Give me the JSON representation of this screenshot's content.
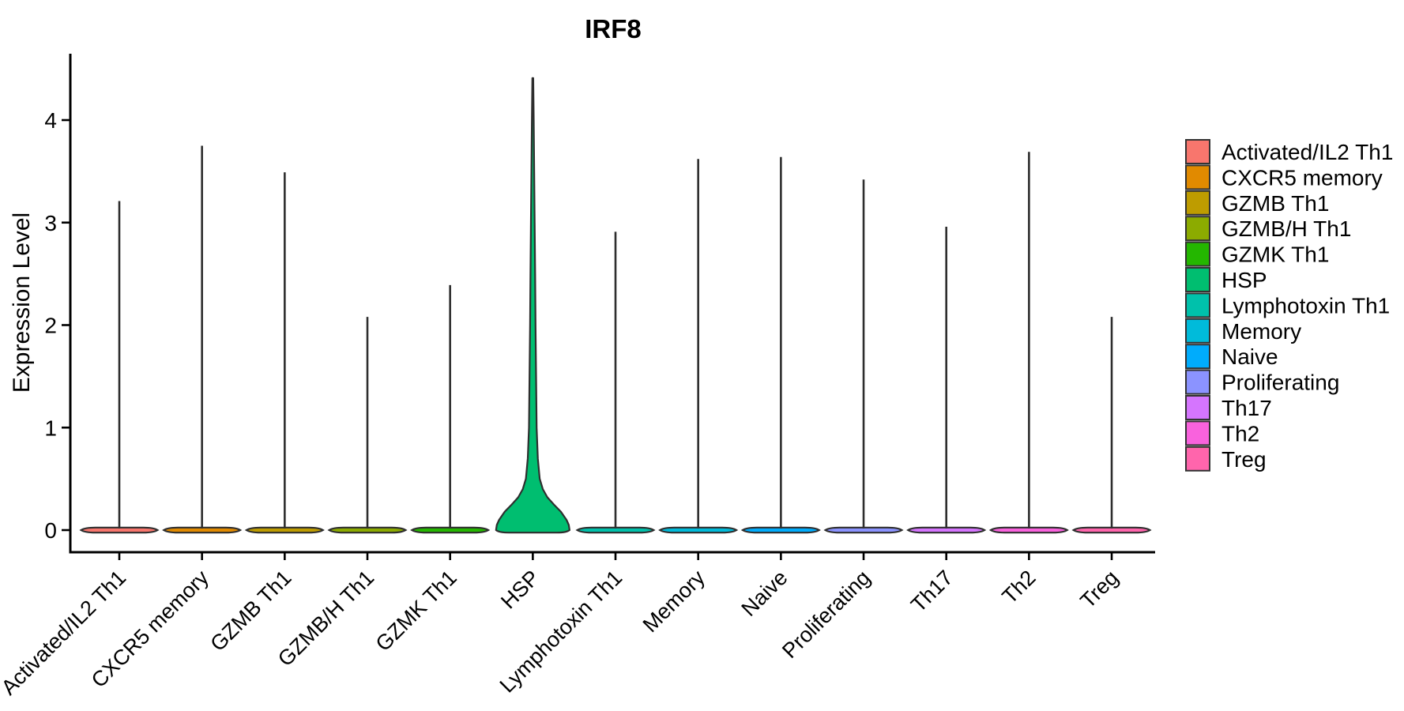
{
  "figure": {
    "title": "IRF8",
    "y_axis_title": "Expression Level"
  },
  "chart_data": {
    "type": "violin",
    "title": "IRF8",
    "xlabel": "",
    "ylabel": "Expression Level",
    "ylim": [
      -0.06,
      4.65
    ],
    "y_ticks": [
      0,
      1,
      2,
      3,
      4
    ],
    "grid": false,
    "legend_position": "right",
    "categories": [
      "Activated/IL2 Th1",
      "CXCR5 memory",
      "GZMB Th1",
      "GZMB/H Th1",
      "GZMK Th1",
      "HSP",
      "Lymphotoxin Th1",
      "Memory",
      "Naive",
      "Proliferating",
      "Th17",
      "Th2",
      "Treg"
    ],
    "series": [
      {
        "name": "Activated/IL2 Th1",
        "color": "#F8766D",
        "max_expression": 3.21
      },
      {
        "name": "CXCR5 memory",
        "color": "#E18A00",
        "max_expression": 3.75
      },
      {
        "name": "GZMB Th1",
        "color": "#BE9C00",
        "max_expression": 3.49
      },
      {
        "name": "GZMB/H Th1",
        "color": "#8CAB00",
        "max_expression": 2.08
      },
      {
        "name": "GZMK Th1",
        "color": "#24B700",
        "max_expression": 2.39
      },
      {
        "name": "HSP",
        "color": "#00BE70",
        "max_expression": 4.41,
        "profile": [
          [
            0,
            0.96
          ],
          [
            0.05,
            0.94
          ],
          [
            0.1,
            0.88
          ],
          [
            0.18,
            0.73
          ],
          [
            0.25,
            0.55
          ],
          [
            0.32,
            0.38
          ],
          [
            0.4,
            0.26
          ],
          [
            0.5,
            0.18
          ],
          [
            0.7,
            0.13
          ],
          [
            1,
            0.1
          ],
          [
            1.5,
            0.085
          ],
          [
            2,
            0.072
          ],
          [
            2.5,
            0.06
          ],
          [
            3,
            0.048
          ],
          [
            3.5,
            0.036
          ],
          [
            4,
            0.024
          ],
          [
            4.41,
            0.012
          ]
        ]
      },
      {
        "name": "Lymphotoxin Th1",
        "color": "#00C1AB",
        "max_expression": 2.91
      },
      {
        "name": "Memory",
        "color": "#00BBDA",
        "max_expression": 3.62
      },
      {
        "name": "Naive",
        "color": "#00ACFC",
        "max_expression": 3.64
      },
      {
        "name": "Proliferating",
        "color": "#8B93FF",
        "max_expression": 3.42
      },
      {
        "name": "Th17",
        "color": "#D575FE",
        "max_expression": 2.96
      },
      {
        "name": "Th2",
        "color": "#F962DD",
        "max_expression": 3.69
      },
      {
        "name": "Treg",
        "color": "#FF65AC",
        "max_expression": 2.08
      }
    ],
    "distribution_note": "All populations are concentrated at expression level 0 (flat baseline violins with a thin tail up to max_expression); only HSP shows a visible wide density bulge between 0 and ~0.5."
  }
}
